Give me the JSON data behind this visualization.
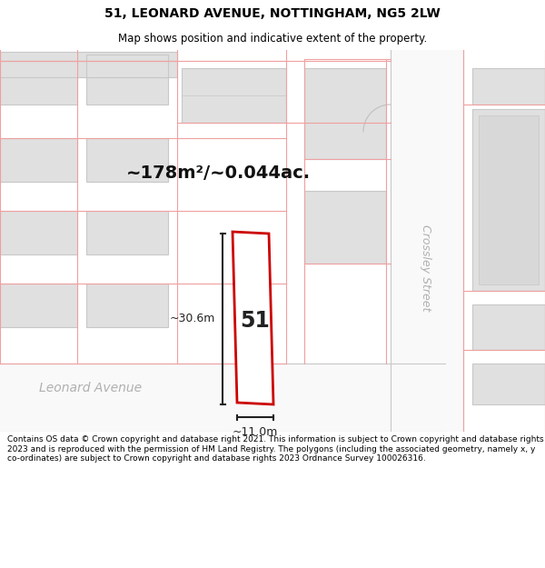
{
  "title": "51, LEONARD AVENUE, NOTTINGHAM, NG5 2LW",
  "subtitle": "Map shows position and indicative extent of the property.",
  "area_label": "~178m²/~0.044ac.",
  "number_label": "51",
  "width_label": "~11.0m",
  "height_label": "~30.6m",
  "footer": "Contains OS data © Crown copyright and database right 2021. This information is subject to Crown copyright and database rights 2023 and is reproduced with the permission of HM Land Registry. The polygons (including the associated geometry, namely x, y co-ordinates) are subject to Crown copyright and database rights 2023 Ordnance Survey 100026316.",
  "bg_color": "#ffffff",
  "map_bg": "#f5f5f5",
  "plot_outline_color": "#cc0000",
  "building_fill": "#e0e0e0",
  "building_edge": "#c8c8c8",
  "cadastral_color": "#f0a0a0",
  "road_fill": "#f5f5f5",
  "dim_color": "#222222",
  "street_label_color": "#b0b0b0",
  "title_fontsize": 10,
  "subtitle_fontsize": 8.5
}
